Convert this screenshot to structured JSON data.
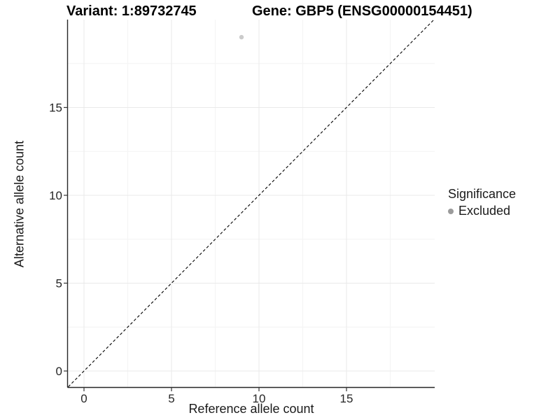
{
  "chart_data": {
    "type": "scatter",
    "title_left": "Variant: 1:89732745",
    "title_right": "Gene: GBP5 (ENSG00000154451)",
    "xlabel": "Reference allele count",
    "ylabel": "Alternative allele count",
    "xlim": [
      -0.9,
      20.1
    ],
    "ylim": [
      -0.9,
      20.1
    ],
    "x_ticks": [
      0,
      5,
      10,
      15
    ],
    "y_ticks": [
      0,
      5,
      10,
      15
    ],
    "x_minor_ticks": [
      2.5,
      7.5,
      12.5,
      17.5
    ],
    "y_minor_ticks": [
      2.5,
      7.5,
      12.5,
      17.5
    ],
    "grid": "major and minor gridlines on white panel, axis lines on left and bottom only",
    "legend_position": "right, vertically centered",
    "series": [
      {
        "name": "Excluded",
        "marker": "circle",
        "color": "#cbcbcb",
        "points": [
          {
            "x": 9,
            "y": 19
          }
        ]
      }
    ],
    "reference_line": {
      "kind": "identity y = x",
      "style": "dashed",
      "color": "#000000",
      "from": {
        "x": -0.9,
        "y": -0.9
      },
      "to": {
        "x": 20,
        "y": 20
      }
    }
  },
  "legend": {
    "title": "Significance",
    "items": [
      {
        "label": "Excluded",
        "swatch_color": "#9b9b9b"
      }
    ]
  },
  "colors": {
    "background": "#ffffff",
    "grid_major": "#e9e9e9",
    "grid_minor": "#f4f4f4",
    "axis_line": "#262626",
    "tick_mark": "#333333",
    "tick_label": "#262626",
    "point": "#cbcbcb",
    "legend_dot": "#9b9b9b"
  }
}
